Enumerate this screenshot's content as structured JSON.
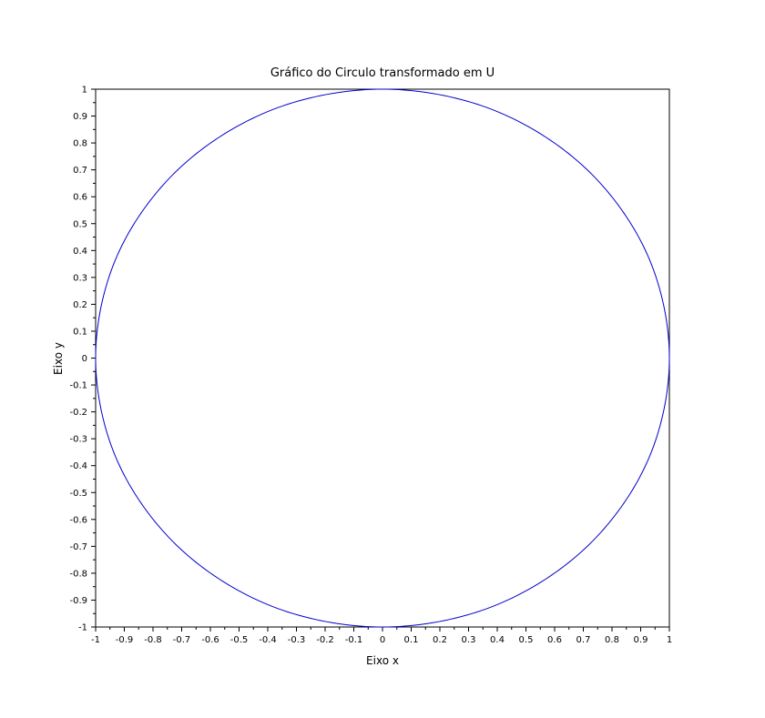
{
  "chart_data": {
    "type": "line",
    "title": "Gráfico do Circulo transformado em U",
    "xlabel": "Eixo x",
    "ylabel": "Eixo y",
    "xlim": [
      -1,
      1
    ],
    "ylim": [
      -1,
      1
    ],
    "grid": false,
    "legend": "none",
    "x_ticks": [
      "-1",
      "-0.9",
      "-0.8",
      "-0.7",
      "-0.6",
      "-0.5",
      "-0.4",
      "-0.3",
      "-0.2",
      "-0.1",
      "0",
      "0.1",
      "0.2",
      "0.3",
      "0.4",
      "0.5",
      "0.6",
      "0.7",
      "0.8",
      "0.9",
      "1"
    ],
    "y_ticks": [
      "-1",
      "-0.9",
      "-0.8",
      "-0.7",
      "-0.6",
      "-0.5",
      "-0.4",
      "-0.3",
      "-0.2",
      "-0.1",
      "0",
      "0.1",
      "0.2",
      "0.3",
      "0.4",
      "0.5",
      "0.6",
      "0.7",
      "0.8",
      "0.9",
      "1"
    ],
    "series": [
      {
        "color": "#0000cc",
        "x": [
          1,
          0.924,
          0.707,
          0.383,
          0.0,
          -0.383,
          -0.707,
          -0.924,
          -1,
          -0.924,
          -0.707,
          -0.383,
          0.0,
          0.383,
          0.707,
          0.924,
          1
        ],
        "y": [
          0,
          0.383,
          0.707,
          0.924,
          1,
          0.924,
          0.707,
          0.383,
          0,
          -0.383,
          -0.707,
          -0.924,
          -1,
          -0.924,
          -0.707,
          -0.383,
          0
        ]
      }
    ]
  }
}
